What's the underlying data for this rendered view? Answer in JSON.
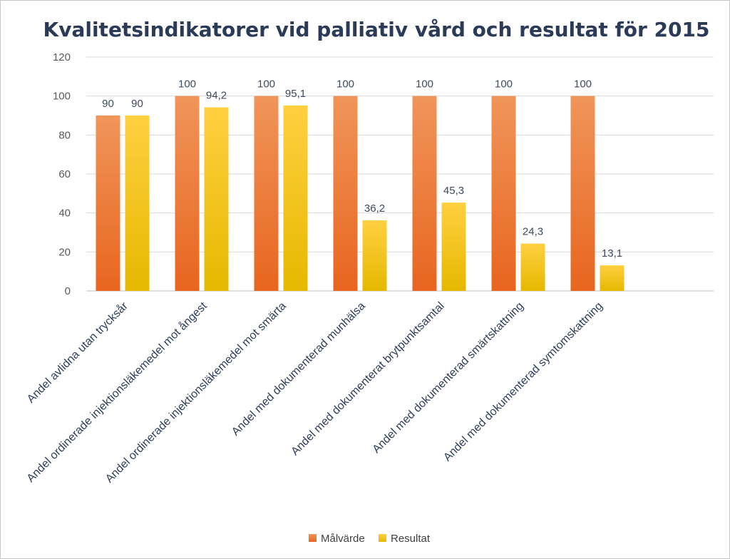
{
  "chart_data": {
    "type": "bar",
    "title": "Kvalitetsindikatorer vid palliativ vård och resultat för 2015",
    "categories": [
      "Andel avlidna utan trycksår",
      "Andel ordinerade injektionsläkemedel mot ångest",
      "Andel ordinerade injektionsläkemedel mot smärta",
      "Andel med dokumenterad munhälsa",
      "Andel med dokumenterat brytpunktsamtal",
      "Andel med dokumenterad smärtskattning",
      "Andel med dokumenterad symtomskattning"
    ],
    "series": [
      {
        "name": "Målvärde",
        "values": [
          90,
          100,
          100,
          100,
          100,
          100,
          100
        ],
        "labels": [
          "90",
          "100",
          "100",
          "100",
          "100",
          "100",
          "100"
        ],
        "color_top": "#f0955a",
        "color_bottom": "#e8651f"
      },
      {
        "name": "Resultat",
        "values": [
          90,
          94.2,
          95.1,
          36.2,
          45.3,
          24.3,
          13.1
        ],
        "labels": [
          "90",
          "94,2",
          "95,1",
          "36,2",
          "45,3",
          "24,3",
          "13,1"
        ],
        "color_top": "#ffd040",
        "color_bottom": "#e6b800"
      }
    ],
    "ylim": [
      0,
      120
    ],
    "yticks": [
      "0",
      "20",
      "40",
      "60",
      "80",
      "100",
      "120"
    ],
    "grid": true,
    "legend_position": "bottom"
  }
}
